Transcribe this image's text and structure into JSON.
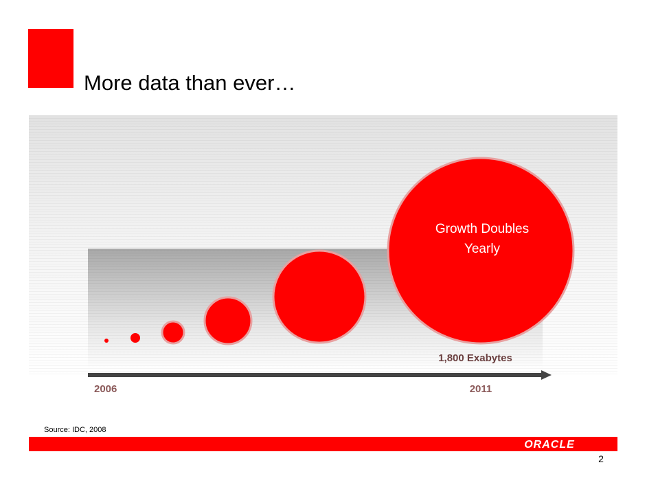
{
  "slide": {
    "title": "More data than ever…",
    "callout": {
      "lines": [
        "Growth Doubles",
        "Yearly"
      ]
    },
    "volume_label": "1,800 Exabytes",
    "timeline": {
      "start": "2006",
      "end": "2011"
    },
    "source": "Source: IDC, 2008",
    "logo": "ORACLE",
    "page_number": "2"
  }
}
